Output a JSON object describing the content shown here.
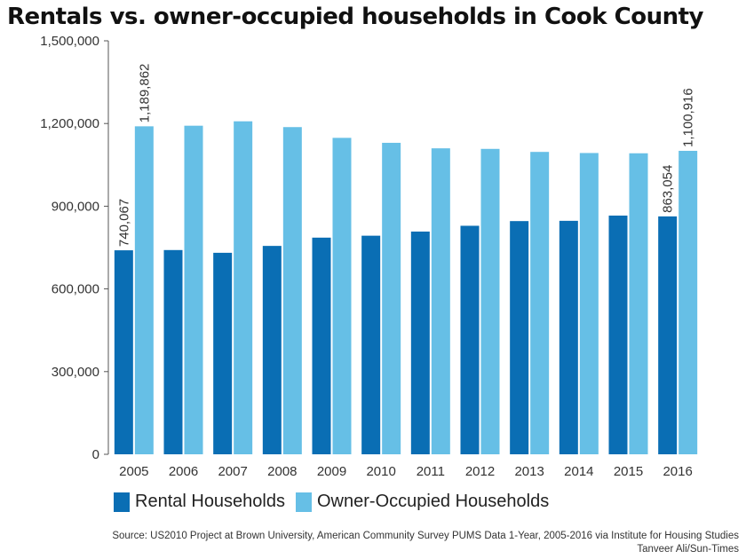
{
  "chart_data": {
    "type": "bar",
    "title": "Rentals vs. owner-occupied households in Cook County",
    "categories": [
      "2005",
      "2006",
      "2007",
      "2008",
      "2009",
      "2010",
      "2011",
      "2012",
      "2013",
      "2014",
      "2015",
      "2016"
    ],
    "series": [
      {
        "name": "Rental Households",
        "color": "#0a6eb4",
        "values": [
          740067,
          741000,
          731000,
          756000,
          786000,
          793000,
          808000,
          829000,
          846000,
          847000,
          866000,
          863054
        ]
      },
      {
        "name": "Owner-Occupied Households",
        "color": "#66bfe6",
        "values": [
          1189862,
          1192000,
          1208000,
          1187000,
          1148000,
          1130000,
          1110000,
          1108000,
          1097000,
          1093000,
          1092000,
          1100916
        ]
      }
    ],
    "data_labels": [
      {
        "series": 0,
        "index": 0,
        "text": "740,067"
      },
      {
        "series": 1,
        "index": 0,
        "text": "1,189,862"
      },
      {
        "series": 0,
        "index": 11,
        "text": "863,054"
      },
      {
        "series": 1,
        "index": 11,
        "text": "1,100,916"
      }
    ],
    "yticks": [
      0,
      300000,
      600000,
      900000,
      1200000,
      1500000
    ],
    "ytick_labels": [
      "0",
      "300,000",
      "600,000",
      "900,000",
      "1,200,000",
      "1,500,000"
    ],
    "ylim": [
      0,
      1500000
    ],
    "legend_position": "bottom-left",
    "grid": false
  },
  "footer": {
    "source": "Source: US2010 Project at Brown University, American Community Survey PUMS Data 1-Year, 2005-2016 via Institute for Housing Studies",
    "credit": "Tanveer Ali/Sun-Times"
  }
}
